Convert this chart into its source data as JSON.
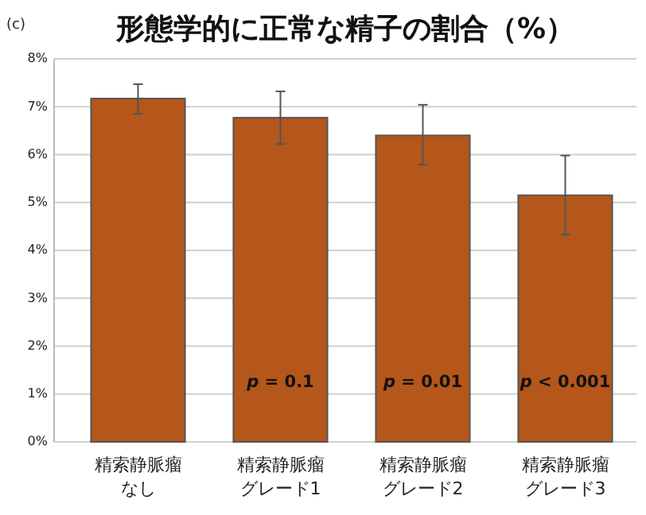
{
  "chart_data": {
    "type": "bar",
    "title": "形態学的に正常な精子の割合（%）",
    "categories": [
      "精索静脈瘤なし",
      "精索静脈瘤グレード1",
      "精索静脈瘤グレード2",
      "精索静脈瘤グレード3"
    ],
    "values": [
      7.17,
      6.77,
      6.4,
      5.15
    ],
    "color": "#b5561a",
    "errors": [
      [
        6.85,
        7.47
      ],
      [
        6.22,
        7.32
      ],
      [
        5.79,
        7.04
      ],
      [
        4.33,
        5.98
      ]
    ],
    "ylim": [
      0,
      8
    ],
    "yticks": [
      {
        "value": 0,
        "label": "0%"
      },
      {
        "value": 1,
        "label": "1%"
      },
      {
        "value": 2,
        "label": "2%"
      },
      {
        "value": 3,
        "label": "3%"
      },
      {
        "value": 4,
        "label": "4%"
      },
      {
        "value": 5,
        "label": "5%"
      },
      {
        "value": 6,
        "label": "6%"
      },
      {
        "value": 7,
        "label": "7%"
      },
      {
        "value": 8,
        "label": "8%"
      }
    ],
    "grid": "y",
    "annotations": [
      "(c)",
      "p = 0.1",
      "p = 0.01",
      "p < 0.001"
    ]
  }
}
